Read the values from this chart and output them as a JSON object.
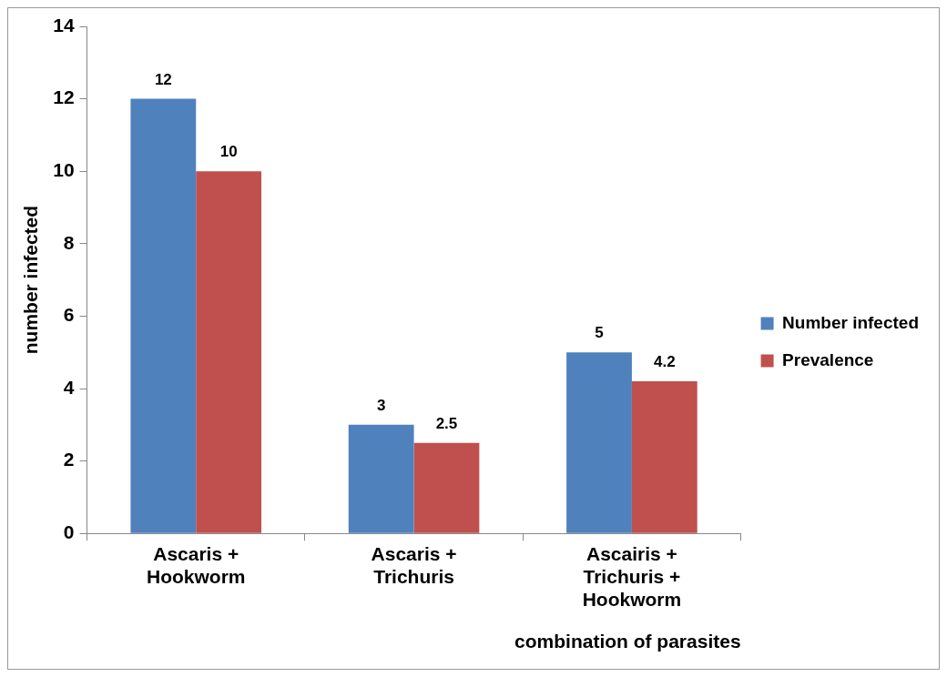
{
  "chart_data": {
    "type": "bar",
    "xlabel": "combination of parasites",
    "ylabel": "number infected",
    "categories": [
      "Ascaris + Hookworm",
      "Ascaris + Trichuris",
      "Ascairis + Trichuris + Hookworm"
    ],
    "series": [
      {
        "name": "Number infected",
        "color": "#4f81bd",
        "values": [
          12,
          3,
          5
        ]
      },
      {
        "name": "Prevalence",
        "color": "#c0504d",
        "values": [
          10,
          2.5,
          4.2
        ]
      }
    ],
    "ylim": [
      0,
      14
    ],
    "yticks": [
      0,
      2,
      4,
      6,
      8,
      10,
      12,
      14
    ],
    "grid": false,
    "legend": "right",
    "data_labels": true
  }
}
